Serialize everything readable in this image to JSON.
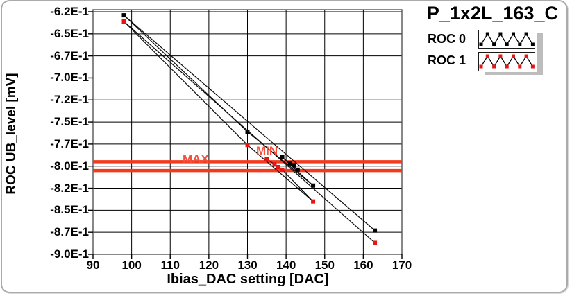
{
  "title": "P_1x2L_163_C",
  "legend": {
    "items": [
      {
        "label": "ROC 0",
        "line_color": "#000000",
        "marker_color": "#000000"
      },
      {
        "label": "ROC 1",
        "line_color": "#000000",
        "marker_color": "#e81414"
      }
    ]
  },
  "chart_data": {
    "type": "line",
    "title": "P_1x2L_163_C",
    "xlabel": "Ibias_DAC setting [DAC]",
    "ylabel": "ROC UB_level [mV]",
    "xlim": [
      90,
      170
    ],
    "ylim": [
      -0.9,
      -0.625
    ],
    "grid": true,
    "grid_color": "#000000",
    "legend_position": "top-right",
    "x_ticks": [
      {
        "label": "90",
        "value": 90
      },
      {
        "label": "100",
        "value": 100
      },
      {
        "label": "110",
        "value": 110
      },
      {
        "label": "120",
        "value": 120
      },
      {
        "label": "130",
        "value": 130
      },
      {
        "label": "140",
        "value": 140
      },
      {
        "label": "150",
        "value": 150
      },
      {
        "label": "160",
        "value": 160
      },
      {
        "label": "170",
        "value": 170
      }
    ],
    "y_ticks": [
      {
        "label": "-6.2E-1",
        "value": -0.625
      },
      {
        "label": "-6.5E-1",
        "value": -0.65
      },
      {
        "label": "-6.7E-1",
        "value": -0.675
      },
      {
        "label": "-7.0E-1",
        "value": -0.7
      },
      {
        "label": "-7.2E-1",
        "value": -0.725
      },
      {
        "label": "-7.5E-1",
        "value": -0.75
      },
      {
        "label": "-7.7E-1",
        "value": -0.775
      },
      {
        "label": "-8.0E-1",
        "value": -0.8
      },
      {
        "label": "-8.2E-1",
        "value": -0.825
      },
      {
        "label": "-8.5E-1",
        "value": -0.85
      },
      {
        "label": "-8.7E-1",
        "value": -0.875
      },
      {
        "label": "-9.0E-1",
        "value": -0.9
      }
    ],
    "series": [
      {
        "name": "ROC 0",
        "line_color": "#0a0a0a",
        "marker_color": "#000000",
        "points": [
          [
            163,
            -0.873
          ],
          [
            98,
            -0.629
          ],
          [
            130,
            -0.761
          ],
          [
            147,
            -0.822
          ],
          [
            139,
            -0.79
          ],
          [
            143,
            -0.804
          ],
          [
            141,
            -0.797
          ],
          [
            142,
            -0.799
          ]
        ]
      },
      {
        "name": "ROC 1",
        "line_color": "#0a0a0a",
        "marker_color": "#e81414",
        "points": [
          [
            163,
            -0.887
          ],
          [
            98,
            -0.636
          ],
          [
            130,
            -0.776
          ],
          [
            147,
            -0.84
          ],
          [
            139,
            -0.804
          ],
          [
            135,
            -0.792
          ],
          [
            137,
            -0.798
          ],
          [
            138,
            -0.801
          ]
        ]
      }
    ],
    "limit_lines": [
      {
        "name": "MAX",
        "value": -0.795,
        "color": "#f43a1e",
        "label_color": "#f4503c"
      },
      {
        "name": "MIN",
        "value": -0.805,
        "color": "#f43a1e",
        "label_color": "#f4503c"
      }
    ]
  }
}
